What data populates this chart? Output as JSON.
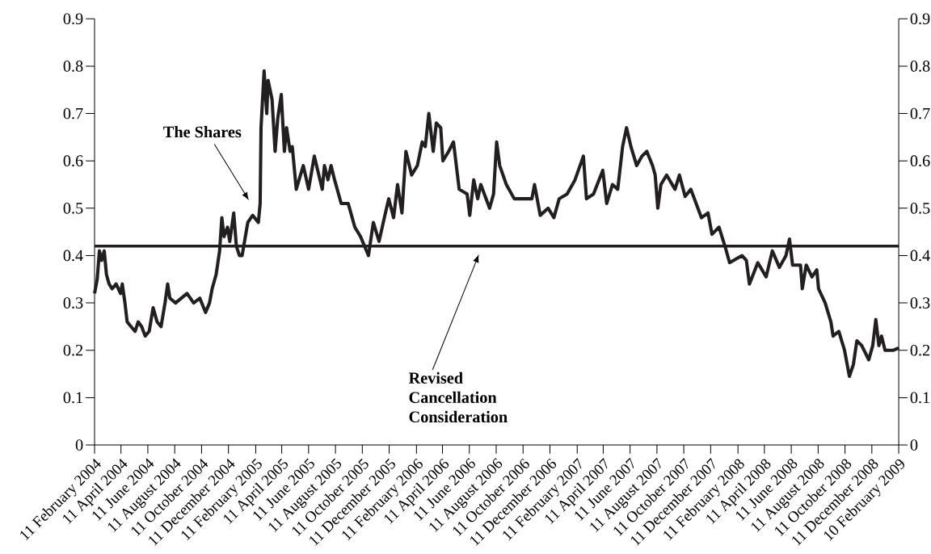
{
  "chart_data": {
    "type": "line",
    "x": [
      "2004-02-11",
      "2004-02-17",
      "2004-02-22",
      "2004-02-27",
      "2004-03-04",
      "2004-03-09",
      "2004-03-15",
      "2004-03-22",
      "2004-03-31",
      "2004-04-10",
      "2004-04-14",
      "2004-04-20",
      "2004-04-25",
      "2004-05-04",
      "2004-05-13",
      "2004-05-20",
      "2004-05-28",
      "2004-06-05",
      "2004-06-14",
      "2004-06-23",
      "2004-07-02",
      "2004-07-11",
      "2004-07-20",
      "2004-07-26",
      "2004-07-31",
      "2004-08-13",
      "2004-08-26",
      "2004-09-08",
      "2004-09-23",
      "2004-10-07",
      "2004-10-20",
      "2004-10-29",
      "2004-11-04",
      "2004-11-13",
      "2004-11-21",
      "2004-11-26",
      "2004-12-01",
      "2004-12-09",
      "2004-12-14",
      "2004-12-23",
      "2004-12-29",
      "2005-01-05",
      "2005-01-11",
      "2005-01-24",
      "2005-02-04",
      "2005-02-17",
      "2005-02-21",
      "2005-02-23",
      "2005-03-02",
      "2005-03-08",
      "2005-03-11",
      "2005-03-20",
      "2005-03-27",
      "2005-04-02",
      "2005-04-10",
      "2005-04-17",
      "2005-04-22",
      "2005-04-30",
      "2005-05-05",
      "2005-05-14",
      "2005-05-30",
      "2005-06-11",
      "2005-06-24",
      "2005-07-12",
      "2005-07-17",
      "2005-07-25",
      "2005-08-01",
      "2005-08-09",
      "2005-08-24",
      "2005-09-09",
      "2005-09-24",
      "2005-10-07",
      "2005-10-25",
      "2005-11-05",
      "2005-11-18",
      "2005-11-30",
      "2005-12-10",
      "2005-12-21",
      "2005-12-30",
      "2006-01-09",
      "2006-01-18",
      "2006-01-31",
      "2006-02-13",
      "2006-02-24",
      "2006-03-03",
      "2006-03-11",
      "2006-03-21",
      "2006-03-28",
      "2006-04-07",
      "2006-04-12",
      "2006-04-25",
      "2006-05-06",
      "2006-05-19",
      "2006-06-06",
      "2006-06-12",
      "2006-06-21",
      "2006-06-30",
      "2006-07-07",
      "2006-07-27",
      "2006-08-05",
      "2006-08-12",
      "2006-08-19",
      "2006-09-03",
      "2006-09-21",
      "2006-10-31",
      "2006-11-06",
      "2006-11-19",
      "2006-12-07",
      "2006-12-20",
      "2007-01-01",
      "2007-01-19",
      "2007-02-06",
      "2007-02-25",
      "2007-03-04",
      "2007-03-20",
      "2007-04-10",
      "2007-04-19",
      "2007-05-02",
      "2007-05-14",
      "2007-05-25",
      "2007-06-03",
      "2007-06-13",
      "2007-06-26",
      "2007-07-08",
      "2007-07-19",
      "2007-08-01",
      "2007-08-07",
      "2007-08-13",
      "2007-08-20",
      "2007-09-02",
      "2007-09-21",
      "2007-10-01",
      "2007-10-14",
      "2007-10-27",
      "2007-11-08",
      "2007-11-20",
      "2007-12-05",
      "2007-12-14",
      "2007-12-30",
      "2008-01-14",
      "2008-01-23",
      "2008-02-20",
      "2008-03-01",
      "2008-03-08",
      "2008-03-27",
      "2008-04-15",
      "2008-04-29",
      "2008-05-15",
      "2008-05-30",
      "2008-06-07",
      "2008-06-14",
      "2008-07-02",
      "2008-07-06",
      "2008-07-15",
      "2008-07-28",
      "2008-08-08",
      "2008-08-12",
      "2008-08-27",
      "2008-09-09",
      "2008-09-14",
      "2008-09-27",
      "2008-10-10",
      "2008-10-21",
      "2008-10-30",
      "2008-11-07",
      "2008-11-18",
      "2008-12-04",
      "2008-12-13",
      "2008-12-20",
      "2008-12-27",
      "2009-01-02",
      "2009-01-10",
      "2009-01-28",
      "2009-02-10"
    ],
    "values": [
      0.32,
      0.35,
      0.41,
      0.39,
      0.41,
      0.36,
      0.34,
      0.33,
      0.34,
      0.32,
      0.34,
      0.3,
      0.26,
      0.25,
      0.24,
      0.26,
      0.25,
      0.23,
      0.24,
      0.29,
      0.26,
      0.25,
      0.3,
      0.34,
      0.31,
      0.3,
      0.31,
      0.32,
      0.3,
      0.31,
      0.28,
      0.3,
      0.33,
      0.36,
      0.41,
      0.48,
      0.44,
      0.46,
      0.43,
      0.49,
      0.42,
      0.4,
      0.4,
      0.47,
      0.485,
      0.47,
      0.51,
      0.67,
      0.79,
      0.7,
      0.77,
      0.73,
      0.62,
      0.69,
      0.74,
      0.62,
      0.67,
      0.62,
      0.63,
      0.54,
      0.59,
      0.54,
      0.61,
      0.54,
      0.59,
      0.56,
      0.59,
      0.56,
      0.51,
      0.51,
      0.46,
      0.44,
      0.4,
      0.47,
      0.43,
      0.48,
      0.52,
      0.48,
      0.55,
      0.49,
      0.62,
      0.57,
      0.59,
      0.64,
      0.63,
      0.7,
      0.62,
      0.68,
      0.67,
      0.6,
      0.62,
      0.64,
      0.54,
      0.53,
      0.485,
      0.56,
      0.52,
      0.55,
      0.5,
      0.53,
      0.64,
      0.59,
      0.55,
      0.52,
      0.52,
      0.55,
      0.485,
      0.5,
      0.48,
      0.52,
      0.53,
      0.56,
      0.61,
      0.52,
      0.53,
      0.58,
      0.51,
      0.55,
      0.54,
      0.63,
      0.67,
      0.63,
      0.59,
      0.61,
      0.62,
      0.59,
      0.57,
      0.5,
      0.55,
      0.57,
      0.54,
      0.57,
      0.525,
      0.54,
      0.51,
      0.48,
      0.49,
      0.445,
      0.46,
      0.415,
      0.385,
      0.4,
      0.39,
      0.34,
      0.385,
      0.355,
      0.41,
      0.375,
      0.4,
      0.435,
      0.38,
      0.38,
      0.33,
      0.38,
      0.355,
      0.37,
      0.33,
      0.3,
      0.26,
      0.23,
      0.24,
      0.2,
      0.145,
      0.17,
      0.22,
      0.21,
      0.18,
      0.21,
      0.265,
      0.21,
      0.23,
      0.2,
      0.2,
      0.205
    ],
    "color": "#231f20",
    "xlim": [
      "2004-02-11",
      "2009-02-10"
    ],
    "xticks": [
      {
        "value": "2004-02-11",
        "label": "11 February 2004"
      },
      {
        "value": "2004-04-11",
        "label": "11 April 2004"
      },
      {
        "value": "2004-06-11",
        "label": "11 June 2004"
      },
      {
        "value": "2004-08-11",
        "label": "11 August 2004"
      },
      {
        "value": "2004-10-11",
        "label": "11 October 2004"
      },
      {
        "value": "2004-12-11",
        "label": "11 December 2004"
      },
      {
        "value": "2005-02-11",
        "label": "11 February 2005"
      },
      {
        "value": "2005-04-11",
        "label": "11 April 2005"
      },
      {
        "value": "2005-06-11",
        "label": "11 June 2005"
      },
      {
        "value": "2005-08-11",
        "label": "11 August 2005"
      },
      {
        "value": "2005-10-11",
        "label": "11 October 2005"
      },
      {
        "value": "2005-12-11",
        "label": "11 December 2005"
      },
      {
        "value": "2006-02-11",
        "label": "11 February 2006"
      },
      {
        "value": "2006-04-11",
        "label": "11 April 2006"
      },
      {
        "value": "2006-06-11",
        "label": "11 June 2006"
      },
      {
        "value": "2006-08-11",
        "label": "11 August 2006"
      },
      {
        "value": "2006-10-11",
        "label": "11 October 2006"
      },
      {
        "value": "2006-12-11",
        "label": "11 December 2006"
      },
      {
        "value": "2007-02-11",
        "label": "11 February 2007"
      },
      {
        "value": "2007-04-11",
        "label": "11 April 2007"
      },
      {
        "value": "2007-06-11",
        "label": "11 June 2007"
      },
      {
        "value": "2007-08-11",
        "label": "11 August 2007"
      },
      {
        "value": "2007-10-11",
        "label": "11 October 2007"
      },
      {
        "value": "2007-12-11",
        "label": "11 December 2007"
      },
      {
        "value": "2008-02-11",
        "label": "11 February 2008"
      },
      {
        "value": "2008-04-11",
        "label": "11 April 2008"
      },
      {
        "value": "2008-06-11",
        "label": "11 June 2008"
      },
      {
        "value": "2008-08-11",
        "label": "11 August 2008"
      },
      {
        "value": "2008-10-11",
        "label": "11 October 2008"
      },
      {
        "value": "2008-12-11",
        "label": "11 December 2008"
      },
      {
        "value": "2009-02-10",
        "label": "10 February 2009"
      }
    ],
    "ylim": [
      0,
      0.9
    ],
    "yticks": [
      {
        "value": 0,
        "label": "0"
      },
      0.1,
      0.2,
      0.3,
      0.4,
      0.5,
      0.6,
      0.7,
      0.8,
      0.9
    ],
    "y2lim": [
      0,
      0.9
    ],
    "y2ticks": [
      {
        "value": 0,
        "label": "0"
      },
      0.1,
      0.2,
      0.3,
      0.4,
      0.5,
      0.6,
      0.7,
      0.8,
      0.9
    ],
    "ref_lines": [
      {
        "axis": "y",
        "value": 0.42,
        "label": "Revised Cancellation Consideration",
        "color": "#231f20"
      }
    ],
    "annotations": [
      "The Shares"
    ],
    "grid": false,
    "marker": "none",
    "line_style": "solid"
  }
}
